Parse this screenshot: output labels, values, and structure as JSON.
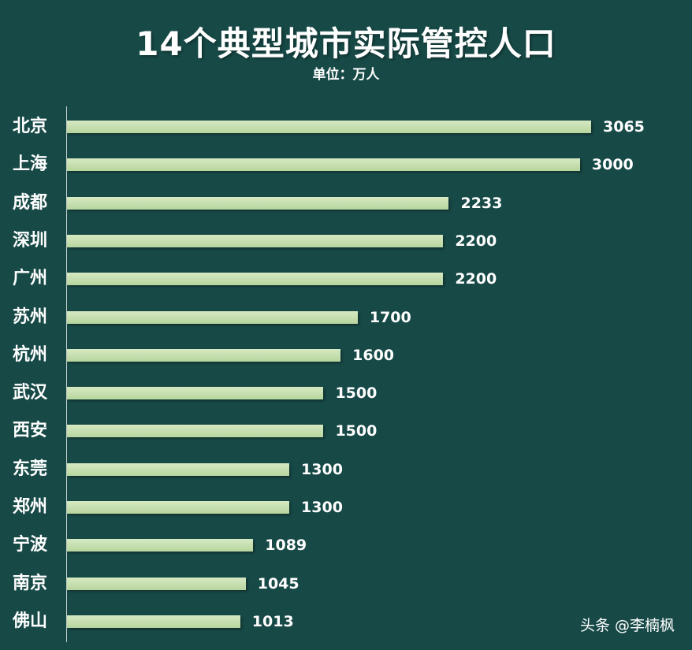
{
  "title": "14个典型城市实际管控人口",
  "subtitle": "单位：万人",
  "watermark": "头条 @李楠枫",
  "colors": {
    "background": "#174a47",
    "bar": "#c6e0ae",
    "text": "#ffffff"
  },
  "chart_data": {
    "type": "bar",
    "orientation": "horizontal",
    "title": "14个典型城市实际管控人口",
    "subtitle": "单位：万人",
    "categories": [
      "北京",
      "上海",
      "成都",
      "深圳",
      "广州",
      "苏州",
      "杭州",
      "武汉",
      "西安",
      "东莞",
      "郑州",
      "宁波",
      "南京",
      "佛山"
    ],
    "values": [
      3065,
      3000,
      2233,
      2200,
      2200,
      1700,
      1600,
      1500,
      1500,
      1300,
      1300,
      1089,
      1045,
      1013
    ],
    "value_labels": [
      "3065",
      "3000",
      "2233",
      "2200",
      "2200",
      "1700",
      "1600",
      "1500",
      "1500",
      "1300",
      "1300",
      "1089",
      "1045",
      "1013"
    ],
    "xlim": [
      0,
      3065
    ],
    "grid": false,
    "legend": "none",
    "data_labels": true
  }
}
